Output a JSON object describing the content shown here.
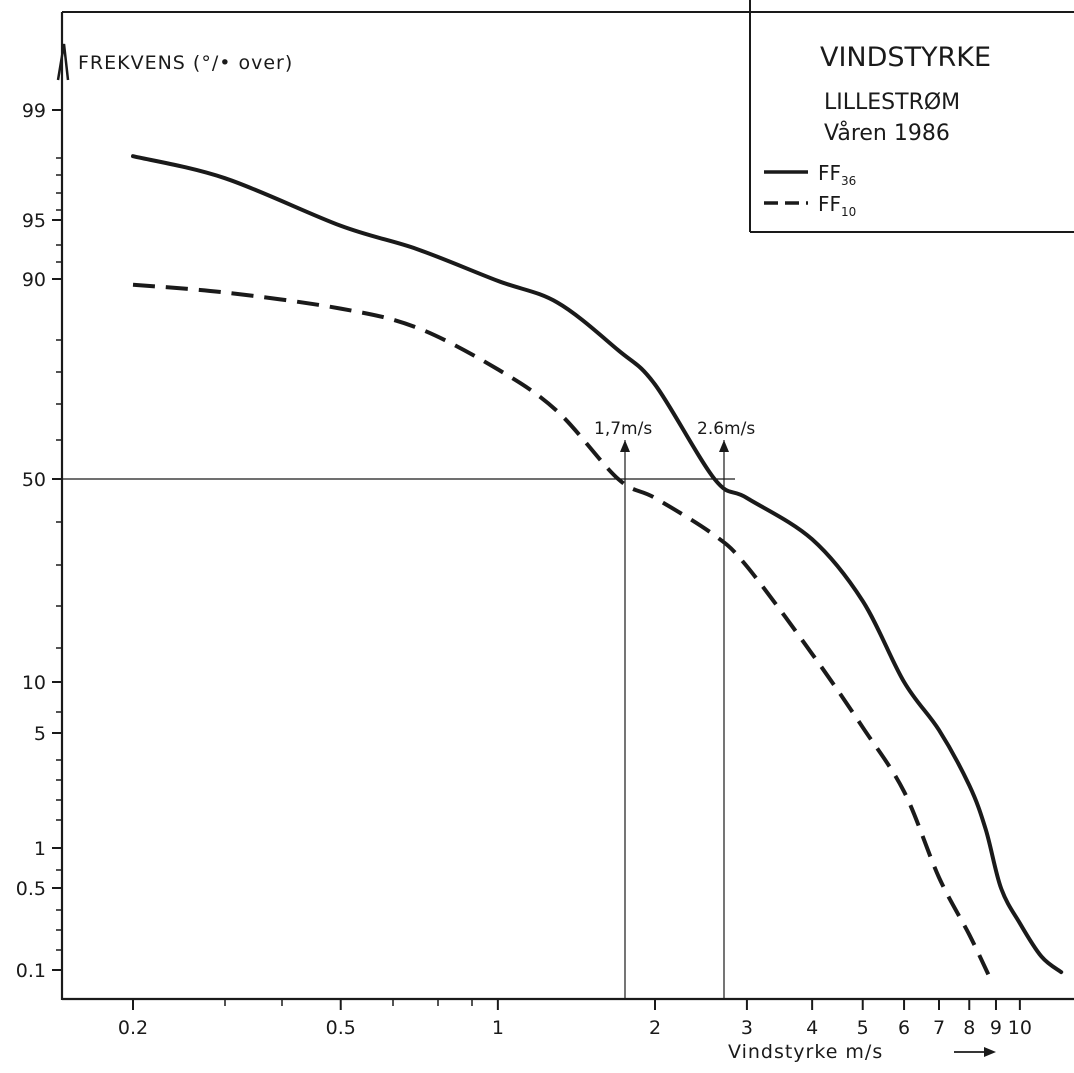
{
  "chart_data": {
    "type": "line",
    "title": "VINDSTYRKE",
    "subtitle": "LILLESTRØM",
    "period": "Våren 1986",
    "xlabel": "Vindstyrke m/s",
    "ylabel": "FREKVENS (°/• over)",
    "x_scale": "log",
    "y_scale": "probability",
    "xlim": [
      0.16,
      13
    ],
    "x_ticks": [
      "0.2",
      "0.5",
      "1",
      "2",
      "3",
      "4",
      "5",
      "6",
      "7",
      "8",
      "9",
      "10"
    ],
    "y_ticks": [
      "99",
      "95",
      "90",
      "50",
      "10",
      "5",
      "1",
      "0.5",
      "0.1"
    ],
    "grid": false,
    "legend_position": "top-right",
    "series": [
      {
        "name": "FF36",
        "label_main": "FF",
        "label_sub": "36",
        "style": "solid",
        "points": [
          [
            0.2,
            97.3
          ],
          [
            0.3,
            96.5
          ],
          [
            0.5,
            94.5
          ],
          [
            0.7,
            92.5
          ],
          [
            1.0,
            89.5
          ],
          [
            1.3,
            84
          ],
          [
            1.7,
            73
          ],
          [
            2.0,
            66
          ],
          [
            2.6,
            50
          ],
          [
            3.0,
            43
          ],
          [
            4.0,
            31
          ],
          [
            5.0,
            19
          ],
          [
            6.0,
            10
          ],
          [
            7.0,
            5.2
          ],
          [
            8.0,
            2.4
          ],
          [
            8.6,
            1.3
          ],
          [
            9.2,
            0.5
          ],
          [
            10.0,
            0.25
          ],
          [
            11.0,
            0.13
          ],
          [
            12.0,
            0.095
          ]
        ]
      },
      {
        "name": "FF10",
        "label_main": "FF",
        "label_sub": "10",
        "style": "dashed",
        "points": [
          [
            0.2,
            88.5
          ],
          [
            0.3,
            86.5
          ],
          [
            0.5,
            82.5
          ],
          [
            0.7,
            78
          ],
          [
            1.0,
            69
          ],
          [
            1.3,
            61
          ],
          [
            1.7,
            50
          ],
          [
            2.0,
            43
          ],
          [
            2.6,
            32
          ],
          [
            3.0,
            25
          ],
          [
            4.0,
            12.5
          ],
          [
            5.0,
            5.4
          ],
          [
            6.0,
            2.2
          ],
          [
            7.0,
            0.6
          ],
          [
            8.0,
            0.2
          ],
          [
            8.7,
            0.09
          ]
        ]
      }
    ],
    "annotations": [
      {
        "text": "1,7m/s",
        "x": 1.7,
        "y": 50
      },
      {
        "text": "2.6m/s",
        "x": 2.6,
        "y": 50
      }
    ]
  }
}
